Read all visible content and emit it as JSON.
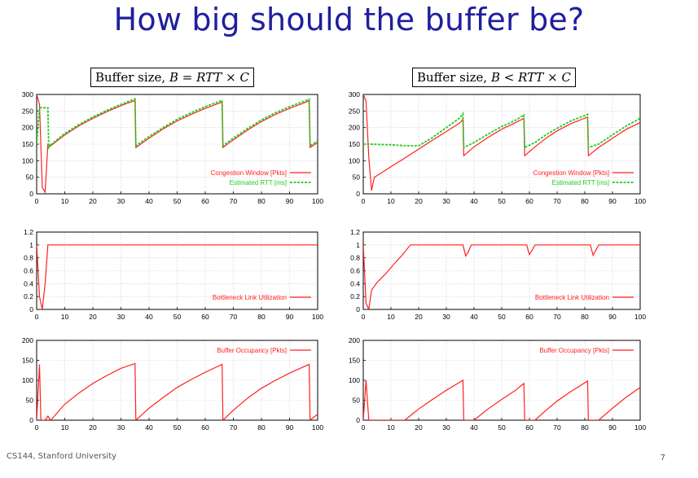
{
  "slide": {
    "title": "How big should the buffer be?",
    "footer": "CS144, Stanford University",
    "page_number": "7"
  },
  "panels": {
    "left": {
      "heading_text": "Buffer size, ",
      "heading_math": "B = RTT × C"
    },
    "right": {
      "heading_text": "Buffer size, ",
      "heading_math": "B < RTT × C"
    }
  },
  "colors": {
    "red": "#ff2020",
    "green": "#22cc22",
    "axis": "#000000"
  },
  "chart_data": [
    {
      "type": "line",
      "panel": "left",
      "xlim": [
        0,
        100
      ],
      "ylim": [
        0,
        300
      ],
      "xticks": [
        0,
        10,
        20,
        30,
        40,
        50,
        60,
        70,
        80,
        90,
        100
      ],
      "yticks": [
        0,
        50,
        100,
        150,
        200,
        250,
        300
      ],
      "grid": true,
      "legend_placement": "bottom-right",
      "series": [
        {
          "name": "Congestion Window [Pkts]",
          "color": "red",
          "style": "solid",
          "points": [
            [
              0,
              300
            ],
            [
              1,
              270
            ],
            [
              2,
              20
            ],
            [
              3,
              5
            ],
            [
              4,
              150
            ],
            [
              5,
              145
            ],
            [
              10,
              178
            ],
            [
              15,
              205
            ],
            [
              20,
              228
            ],
            [
              25,
              248
            ],
            [
              30,
              266
            ],
            [
              35,
              282
            ],
            [
              35.3,
              140
            ],
            [
              40,
              168
            ],
            [
              45,
              196
            ],
            [
              50,
              220
            ],
            [
              55,
              240
            ],
            [
              60,
              258
            ],
            [
              65,
              274
            ],
            [
              66,
              277
            ],
            [
              66.3,
              140
            ],
            [
              70,
              163
            ],
            [
              75,
              192
            ],
            [
              80,
              218
            ],
            [
              85,
              240
            ],
            [
              90,
              258
            ],
            [
              95,
              274
            ],
            [
              97,
              281
            ],
            [
              97.3,
              140
            ],
            [
              100,
              155
            ]
          ]
        },
        {
          "name": "Estimated RTT [ms]",
          "color": "green",
          "style": "dashed",
          "points": [
            [
              0,
              150
            ],
            [
              1,
              260
            ],
            [
              4,
              260
            ],
            [
              4.3,
              140
            ],
            [
              5,
              148
            ],
            [
              10,
              182
            ],
            [
              15,
              209
            ],
            [
              20,
              232
            ],
            [
              25,
              252
            ],
            [
              30,
              270
            ],
            [
              35,
              287
            ],
            [
              35.3,
              145
            ],
            [
              40,
              173
            ],
            [
              45,
              200
            ],
            [
              50,
              225
            ],
            [
              55,
              245
            ],
            [
              60,
              263
            ],
            [
              65,
              279
            ],
            [
              66,
              282
            ],
            [
              66.3,
              145
            ],
            [
              70,
              168
            ],
            [
              75,
              197
            ],
            [
              80,
              223
            ],
            [
              85,
              245
            ],
            [
              90,
              263
            ],
            [
              95,
              279
            ],
            [
              97,
              286
            ],
            [
              97.3,
              145
            ],
            [
              100,
              160
            ]
          ]
        }
      ]
    },
    {
      "type": "line",
      "panel": "right",
      "xlim": [
        0,
        100
      ],
      "ylim": [
        0,
        300
      ],
      "xticks": [
        0,
        10,
        20,
        30,
        40,
        50,
        60,
        70,
        80,
        90,
        100
      ],
      "yticks": [
        0,
        50,
        100,
        150,
        200,
        250,
        300
      ],
      "grid": true,
      "legend_placement": "bottom-right",
      "series": [
        {
          "name": "Congestion Window [Pkts]",
          "color": "red",
          "style": "solid",
          "points": [
            [
              0,
              300
            ],
            [
              1,
              280
            ],
            [
              2,
              110
            ],
            [
              3,
              10
            ],
            [
              4,
              50
            ],
            [
              10,
              82
            ],
            [
              15,
              108
            ],
            [
              20,
              135
            ],
            [
              25,
              162
            ],
            [
              30,
              188
            ],
            [
              35,
              215
            ],
            [
              36,
              225
            ],
            [
              36.3,
              115
            ],
            [
              40,
              142
            ],
            [
              45,
              170
            ],
            [
              50,
              195
            ],
            [
              55,
              215
            ],
            [
              58,
              228
            ],
            [
              58.3,
              115
            ],
            [
              62,
              142
            ],
            [
              66,
              168
            ],
            [
              70,
              190
            ],
            [
              75,
              212
            ],
            [
              81,
              232
            ],
            [
              81.3,
              115
            ],
            [
              85,
              140
            ],
            [
              90,
              168
            ],
            [
              95,
              195
            ],
            [
              100,
              215
            ]
          ]
        },
        {
          "name": "Estimated RTT [ms]",
          "color": "green",
          "style": "dashed",
          "points": [
            [
              0,
              150
            ],
            [
              2,
              150
            ],
            [
              10,
              148
            ],
            [
              15,
              145
            ],
            [
              20,
              145
            ],
            [
              25,
              170
            ],
            [
              30,
              200
            ],
            [
              35,
              230
            ],
            [
              36,
              242
            ],
            [
              36.3,
              140
            ],
            [
              40,
              155
            ],
            [
              45,
              180
            ],
            [
              50,
              203
            ],
            [
              55,
              222
            ],
            [
              58,
              238
            ],
            [
              58.3,
              140
            ],
            [
              62,
              155
            ],
            [
              66,
              178
            ],
            [
              70,
              198
            ],
            [
              75,
              220
            ],
            [
              81,
              240
            ],
            [
              81.3,
              140
            ],
            [
              85,
              150
            ],
            [
              90,
              178
            ],
            [
              95,
              205
            ],
            [
              100,
              228
            ]
          ]
        }
      ]
    },
    {
      "type": "line",
      "panel": "left",
      "xlim": [
        0,
        100
      ],
      "ylim": [
        0,
        1.2
      ],
      "xticks": [
        0,
        10,
        20,
        30,
        40,
        50,
        60,
        70,
        80,
        90,
        100
      ],
      "yticks": [
        0,
        0.2,
        0.4,
        0.6,
        0.8,
        1,
        1.2
      ],
      "grid": true,
      "legend_placement": "bottom-right",
      "series": [
        {
          "name": "Bottleneck Link Utilization",
          "color": "red",
          "style": "solid",
          "points": [
            [
              0,
              1
            ],
            [
              1,
              0.2
            ],
            [
              2,
              0
            ],
            [
              3,
              0.4
            ],
            [
              4,
              1
            ],
            [
              100,
              1
            ]
          ]
        }
      ]
    },
    {
      "type": "line",
      "panel": "right",
      "xlim": [
        0,
        100
      ],
      "ylim": [
        0,
        1.2
      ],
      "xticks": [
        0,
        10,
        20,
        30,
        40,
        50,
        60,
        70,
        80,
        90,
        100
      ],
      "yticks": [
        0,
        0.2,
        0.4,
        0.6,
        0.8,
        1,
        1.2
      ],
      "grid": true,
      "legend_placement": "bottom-right",
      "series": [
        {
          "name": "Bottleneck Link Utilization",
          "color": "red",
          "style": "solid",
          "points": [
            [
              0,
              1
            ],
            [
              1,
              0.1
            ],
            [
              2,
              0
            ],
            [
              3,
              0.3
            ],
            [
              5,
              0.42
            ],
            [
              8,
              0.55
            ],
            [
              11,
              0.7
            ],
            [
              14,
              0.84
            ],
            [
              17,
              1
            ],
            [
              36,
              1
            ],
            [
              37,
              0.83
            ],
            [
              38,
              0.9
            ],
            [
              39,
              1
            ],
            [
              59,
              1
            ],
            [
              60,
              0.85
            ],
            [
              61,
              0.92
            ],
            [
              62,
              1
            ],
            [
              82,
              1
            ],
            [
              83,
              0.84
            ],
            [
              84,
              0.92
            ],
            [
              85,
              1
            ],
            [
              100,
              1
            ]
          ]
        }
      ]
    },
    {
      "type": "line",
      "panel": "left",
      "xlim": [
        0,
        100
      ],
      "ylim": [
        0,
        200
      ],
      "xticks": [
        0,
        10,
        20,
        30,
        40,
        50,
        60,
        70,
        80,
        90,
        100
      ],
      "yticks": [
        0,
        50,
        100,
        150,
        200
      ],
      "grid": true,
      "legend_placement": "top-right",
      "series": [
        {
          "name": "Buffer Occupancy [Pkts]",
          "color": "red",
          "style": "solid",
          "points": [
            [
              0,
              0
            ],
            [
              1,
              140
            ],
            [
              1.5,
              0
            ],
            [
              3,
              0
            ],
            [
              4,
              10
            ],
            [
              5,
              0
            ],
            [
              10,
              40
            ],
            [
              15,
              68
            ],
            [
              20,
              92
            ],
            [
              25,
              112
            ],
            [
              30,
              130
            ],
            [
              35,
              142
            ],
            [
              35.3,
              0
            ],
            [
              40,
              30
            ],
            [
              45,
              57
            ],
            [
              50,
              82
            ],
            [
              55,
              102
            ],
            [
              60,
              120
            ],
            [
              66,
              140
            ],
            [
              66.3,
              0
            ],
            [
              70,
              25
            ],
            [
              75,
              55
            ],
            [
              80,
              80
            ],
            [
              85,
              100
            ],
            [
              90,
              118
            ],
            [
              97,
              140
            ],
            [
              97.3,
              0
            ],
            [
              100,
              15
            ]
          ]
        }
      ]
    },
    {
      "type": "line",
      "panel": "right",
      "xlim": [
        0,
        100
      ],
      "ylim": [
        0,
        200
      ],
      "xticks": [
        0,
        10,
        20,
        30,
        40,
        50,
        60,
        70,
        80,
        90,
        100
      ],
      "yticks": [
        0,
        50,
        100,
        150,
        200
      ],
      "grid": true,
      "legend_placement": "top-right",
      "series": [
        {
          "name": "Buffer Occupancy [Pkts]",
          "color": "red",
          "style": "solid",
          "points": [
            [
              0,
              0
            ],
            [
              1,
              100
            ],
            [
              2,
              0
            ],
            [
              15,
              0
            ],
            [
              20,
              28
            ],
            [
              25,
              52
            ],
            [
              30,
              75
            ],
            [
              36,
              100
            ],
            [
              36.3,
              0
            ],
            [
              40,
              0
            ],
            [
              45,
              28
            ],
            [
              50,
              52
            ],
            [
              55,
              75
            ],
            [
              58,
              92
            ],
            [
              58.3,
              0
            ],
            [
              62,
              0
            ],
            [
              66,
              25
            ],
            [
              70,
              48
            ],
            [
              75,
              72
            ],
            [
              81,
              98
            ],
            [
              81.3,
              0
            ],
            [
              85,
              0
            ],
            [
              90,
              30
            ],
            [
              95,
              58
            ],
            [
              100,
              82
            ]
          ]
        }
      ]
    }
  ]
}
